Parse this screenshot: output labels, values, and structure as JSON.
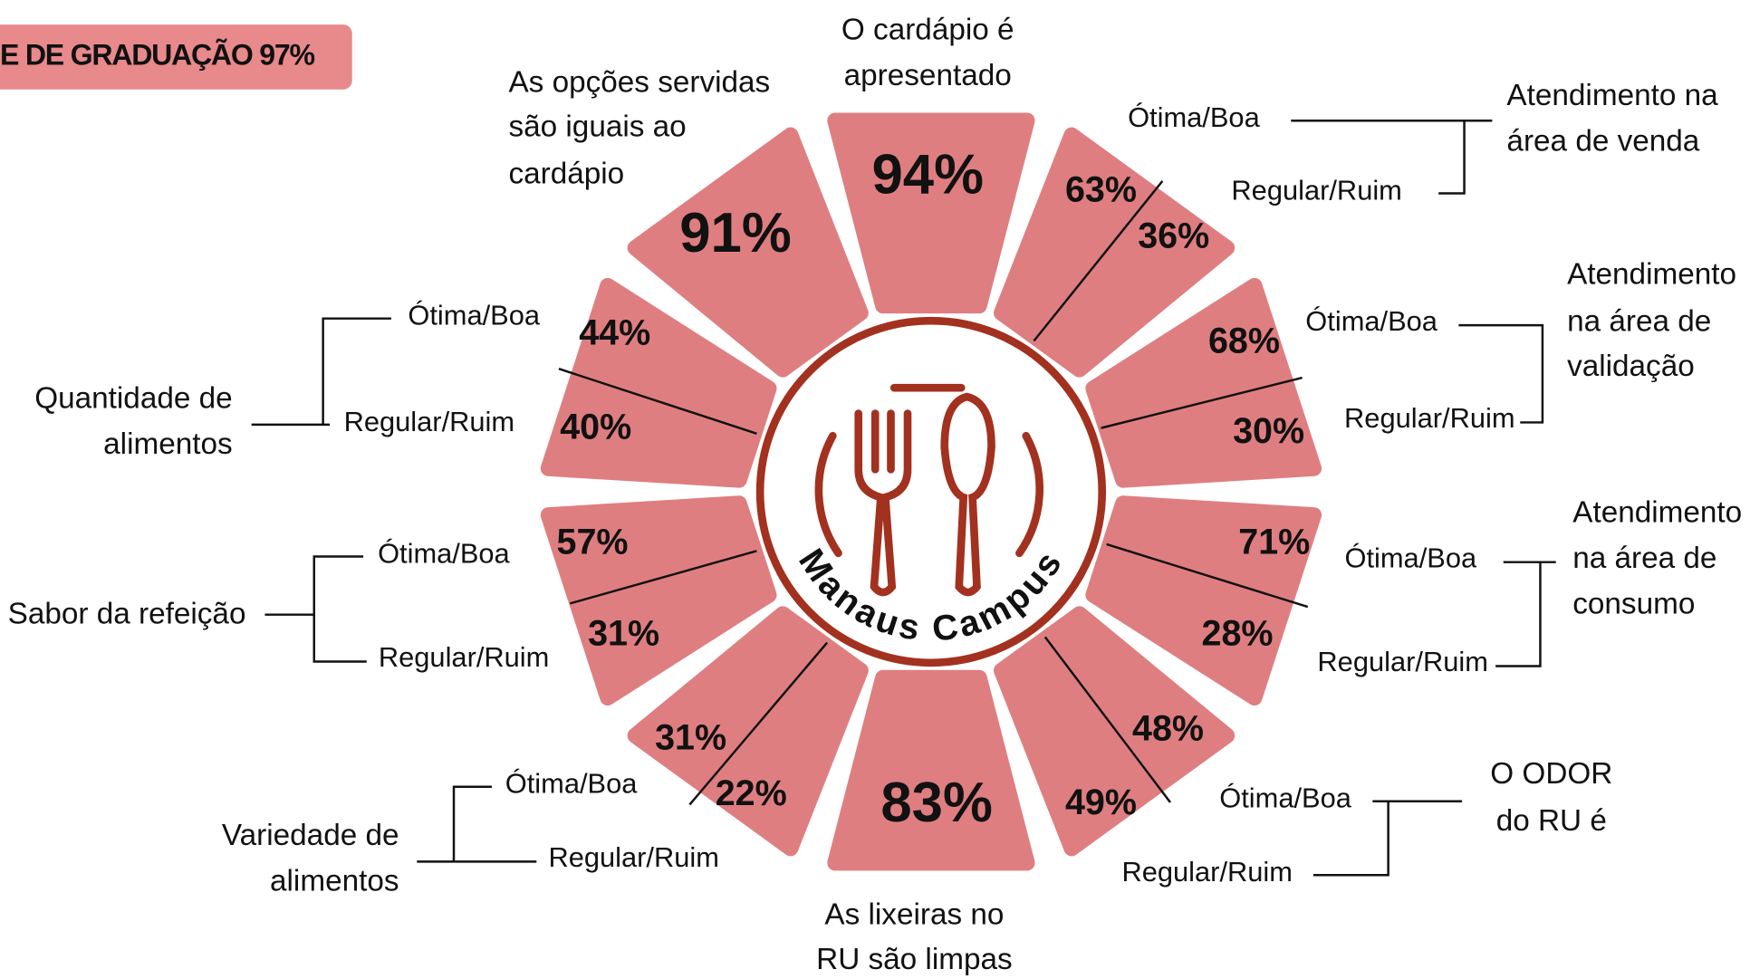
{
  "badge": "E DE GRADUAÇÃO 97%",
  "center_label": "Manaus Campus",
  "segments": [
    {
      "title": [
        "O cardápio é",
        "apresentado"
      ],
      "value": "94%"
    },
    {
      "title": [
        "Atendimento na",
        "área de venda"
      ],
      "good_label": "Ótima/Boa",
      "good": "63%",
      "bad_label": "Regular/Ruim",
      "bad": "36%"
    },
    {
      "title": [
        "Atendimento",
        "na área de",
        "validação"
      ],
      "good_label": "Ótima/Boa",
      "good": "68%",
      "bad_label": "Regular/Ruim",
      "bad": "30%"
    },
    {
      "title": [
        "Atendimento",
        "na área de",
        "consumo"
      ],
      "good_label": "Ótima/Boa",
      "good": "71%",
      "bad_label": "Regular/Ruim",
      "bad": "28%"
    },
    {
      "title": [
        "O ODOR",
        "do RU é"
      ],
      "good_label": "Ótima/Boa",
      "good": "48%",
      "bad_label": "Regular/Ruim",
      "bad": "49%"
    },
    {
      "title": [
        "As lixeiras no",
        "RU são limpas"
      ],
      "value": "83%"
    },
    {
      "title": [
        "Variedade de",
        "alimentos"
      ],
      "good_label": "Ótima/Boa",
      "good": "31%",
      "bad_label": "Regular/Ruim",
      "bad": "22%"
    },
    {
      "title": [
        "Sabor da refeição"
      ],
      "good_label": "Ótima/Boa",
      "good": "57%",
      "bad_label": "Regular/Ruim",
      "bad": "31%"
    },
    {
      "title": [
        "Quantidade de",
        "alimentos"
      ],
      "good_label": "Ótima/Boa",
      "good": "44%",
      "bad_label": "Regular/Ruim",
      "bad": "40%"
    },
    {
      "title": [
        "As opções servidas",
        "são iguais ao",
        "cardápio"
      ],
      "value": "91%"
    }
  ]
}
